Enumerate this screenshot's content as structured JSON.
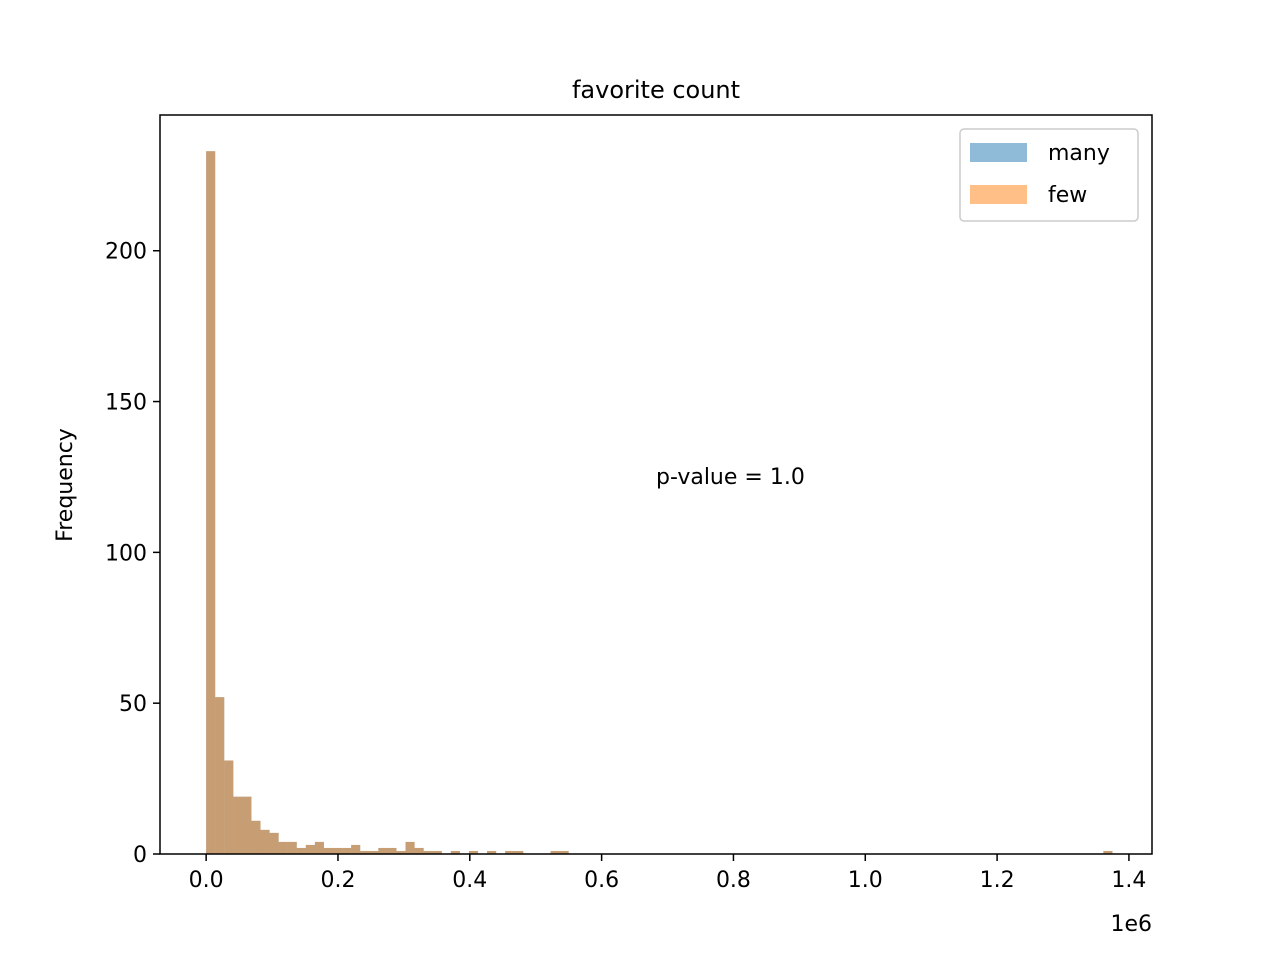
{
  "chart_data": {
    "type": "histogram",
    "title": "favorite count",
    "xlabel": "",
    "ylabel": "Frequency",
    "x_offset_label": "1e6",
    "xlim": [
      -0.07,
      1.435
    ],
    "ylim": [
      0,
      245
    ],
    "bin_width": 0.01375,
    "x_ticks": [
      0.0,
      0.2,
      0.4,
      0.6,
      0.8,
      1.0,
      1.2,
      1.4
    ],
    "x_tick_labels": [
      "0.0",
      "0.2",
      "0.4",
      "0.6",
      "0.8",
      "1.0",
      "1.2",
      "1.4"
    ],
    "y_ticks": [
      0,
      50,
      100,
      150,
      200
    ],
    "y_tick_labels": [
      "0",
      "50",
      "100",
      "150",
      "200"
    ],
    "annotation": "p-value = 1.0",
    "legend": {
      "position": "top-right"
    },
    "series": [
      {
        "name": "many",
        "color": "#1f77b4",
        "alpha": 0.5,
        "counts": [
          233,
          52,
          31,
          19,
          19,
          11,
          8,
          7,
          4,
          4,
          2,
          3,
          4,
          2,
          2,
          2,
          3,
          1,
          1,
          2,
          2,
          1,
          4,
          2,
          1,
          1,
          0,
          1,
          0,
          1,
          0,
          1,
          0,
          1,
          1,
          0,
          0,
          0,
          1,
          1,
          0,
          0,
          0,
          0,
          0,
          0,
          0,
          0,
          0,
          0,
          0,
          0,
          0,
          0,
          0,
          0,
          0,
          0,
          0,
          0,
          0,
          0,
          0,
          0,
          0,
          0,
          0,
          0,
          0,
          0,
          0,
          0,
          0,
          0,
          0,
          0,
          0,
          0,
          0,
          0,
          0,
          0,
          0,
          0,
          0,
          0,
          0,
          0,
          0,
          0,
          0,
          0,
          0,
          0,
          0,
          0,
          0,
          0,
          0,
          1
        ]
      },
      {
        "name": "few",
        "color": "#ff7f0e",
        "alpha": 0.5,
        "counts": [
          233,
          52,
          31,
          19,
          19,
          11,
          8,
          7,
          4,
          4,
          2,
          3,
          4,
          2,
          2,
          2,
          3,
          1,
          1,
          2,
          2,
          1,
          4,
          2,
          1,
          1,
          0,
          1,
          0,
          1,
          0,
          1,
          0,
          1,
          1,
          0,
          0,
          0,
          1,
          1,
          0,
          0,
          0,
          0,
          0,
          0,
          0,
          0,
          0,
          0,
          0,
          0,
          0,
          0,
          0,
          0,
          0,
          0,
          0,
          0,
          0,
          0,
          0,
          0,
          0,
          0,
          0,
          0,
          0,
          0,
          0,
          0,
          0,
          0,
          0,
          0,
          0,
          0,
          0,
          0,
          0,
          0,
          0,
          0,
          0,
          0,
          0,
          0,
          0,
          0,
          0,
          0,
          0,
          0,
          0,
          0,
          0,
          0,
          0,
          1
        ]
      }
    ]
  }
}
